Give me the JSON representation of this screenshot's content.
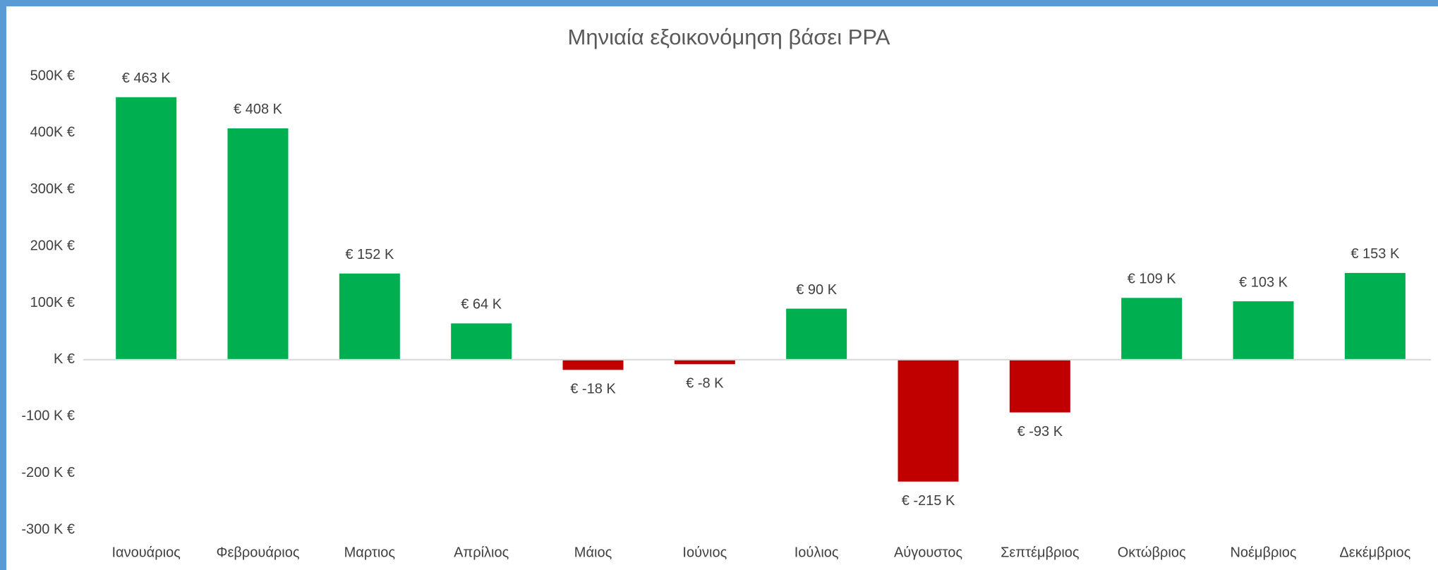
{
  "chart_data": {
    "type": "bar",
    "title": "Μηνιαία εξοικονόμηση βάσει PPA",
    "categories": [
      "Ιανουάριος",
      "Φεβρουάριος",
      "Μαρτιος",
      "Απρίλιος",
      "Μάιος",
      "Ιούνιος",
      "Ιούλιος",
      "Αύγουστος",
      "Σεπτέμβριος",
      "Οκτώβριος",
      "Νοέμβριος",
      "Δεκέμβριος"
    ],
    "values": [
      463,
      408,
      152,
      64,
      -18,
      -8,
      90,
      -215,
      -93,
      109,
      103,
      153
    ],
    "value_labels": [
      "€ 463 K",
      "€ 408 K",
      "€ 152 K",
      "€ 64 K",
      "€ -18 K",
      "€ -8 K",
      "€ 90 K",
      "€ -215 K",
      "€ -93 K",
      "€ 109 K",
      "€ 103 K",
      "€ 153 K"
    ],
    "color_positive": "#00b050",
    "color_negative": "#c00000",
    "ylim": [
      -300,
      500
    ],
    "yticks": [
      {
        "value": -300,
        "label": "-300 K €"
      },
      {
        "value": -200,
        "label": "-200 K €"
      },
      {
        "value": -100,
        "label": "-100 K €"
      },
      {
        "value": 0,
        "label": "K €"
      },
      {
        "value": 100,
        "label": "100K €"
      },
      {
        "value": 200,
        "label": "200K €"
      },
      {
        "value": 300,
        "label": "300K €"
      },
      {
        "value": 400,
        "label": "400K €"
      },
      {
        "value": 500,
        "label": "500K €"
      }
    ],
    "grid": false
  }
}
